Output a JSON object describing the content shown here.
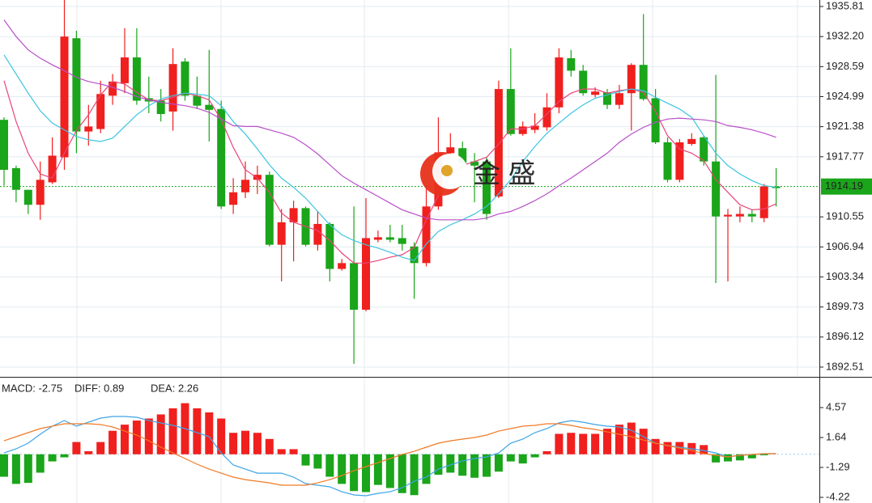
{
  "chart_data": [
    {
      "type": "candlestick",
      "ylim": [
        1891.34,
        1936.59
      ],
      "yticks": [
        1935.81,
        {
          "value": 1932.2,
          "label": "1932.20"
        },
        1928.59,
        1924.99,
        1921.38,
        1917.77,
        1910.55,
        1906.94,
        1903.34,
        1899.73,
        1896.12,
        1892.51
      ],
      "grid": true,
      "up_color": "#f0201e",
      "down_color": "#1aa51a",
      "last_price": 1914.19,
      "last_price_color": "#1aa51a",
      "watermark": "金 盛",
      "open": [
        1922.2,
        1916.4,
        1913.8,
        1912.0,
        1914.7,
        1917.7,
        1932.0,
        1920.8,
        1921.1,
        1925.1,
        1926.6,
        1929.7,
        1924.8,
        1924.5,
        1923.2,
        1929.2,
        1925.1,
        1924.0,
        1923.5,
        1912.0,
        1913.5,
        1915.0,
        1915.6,
        1907.2,
        1909.9,
        1911.6,
        1907.2,
        1909.7,
        1904.3,
        1905.0,
        1899.4,
        1907.8,
        1908.1,
        1908.0,
        1907.0,
        1905.0,
        1911.8,
        1918.2,
        1918.8,
        1917.2,
        1917.2,
        1913.0,
        1925.9,
        1920.5,
        1921.0,
        1921.3,
        1923.7,
        1929.6,
        1928.1,
        1925.2,
        1925.5,
        1924.0,
        1925.4,
        1928.8,
        1924.8,
        1919.5,
        1915.0,
        1919.3,
        1920.1,
        1917.2,
        1910.6,
        1910.6,
        1910.9,
        1910.4,
        1914.2
      ],
      "high": [
        1922.5,
        1916.7,
        1913.8,
        1917.2,
        1920.1,
        1936.6,
        1932.9,
        1924.0,
        1926.9,
        1927.7,
        1933.2,
        1933.2,
        1927.4,
        1925.9,
        1930.8,
        1929.6,
        1927.4,
        1930.6,
        1924.5,
        1915.2,
        1917.2,
        1916.7,
        1916.0,
        1911.5,
        1912.5,
        1911.8,
        1911.2,
        1909.9,
        1905.5,
        1911.8,
        1912.8,
        1908.9,
        1909.6,
        1909.6,
        1907.5,
        1914.3,
        1922.5,
        1920.6,
        1919.6,
        1918.2,
        1917.7,
        1926.9,
        1930.8,
        1922.0,
        1923.0,
        1925.4,
        1930.8,
        1930.6,
        1928.8,
        1926.1,
        1925.9,
        1926.4,
        1929.0,
        1934.9,
        1925.9,
        1920.1,
        1919.9,
        1920.6,
        1920.3,
        1927.6,
        1911.5,
        1911.8,
        1911.4,
        1914.5,
        1916.4
      ],
      "low": [
        1914.3,
        1912.3,
        1910.9,
        1910.2,
        1914.5,
        1916.2,
        1918.2,
        1919.1,
        1920.6,
        1924.0,
        1925.4,
        1924.0,
        1923.0,
        1922.0,
        1920.9,
        1924.5,
        1923.5,
        1919.6,
        1911.5,
        1910.9,
        1912.8,
        1913.3,
        1907.0,
        1902.8,
        1905.2,
        1907.0,
        1906.5,
        1902.8,
        1904.1,
        1892.9,
        1899.2,
        1907.5,
        1907.5,
        1906.5,
        1900.7,
        1904.6,
        1911.4,
        1917.7,
        1916.2,
        1912.3,
        1910.2,
        1912.8,
        1920.3,
        1920.3,
        1920.6,
        1920.9,
        1923.0,
        1927.4,
        1925.1,
        1924.9,
        1923.5,
        1923.5,
        1920.9,
        1924.5,
        1919.3,
        1914.7,
        1914.7,
        1919.1,
        1916.7,
        1902.6,
        1902.8,
        1909.9,
        1909.9,
        1909.9,
        1911.8
      ],
      "close": [
        1916.2,
        1913.8,
        1912.0,
        1915.0,
        1917.9,
        1932.2,
        1920.8,
        1921.4,
        1925.3,
        1926.8,
        1929.7,
        1924.5,
        1924.4,
        1922.9,
        1928.9,
        1925.1,
        1923.9,
        1923.4,
        1911.8,
        1913.5,
        1915.0,
        1915.6,
        1907.2,
        1909.9,
        1911.6,
        1907.2,
        1909.7,
        1904.3,
        1905.0,
        1899.4,
        1908.0,
        1908.1,
        1907.8,
        1907.3,
        1905.0,
        1911.8,
        1918.3,
        1918.9,
        1917.0,
        1916.7,
        1910.9,
        1925.9,
        1920.5,
        1921.4,
        1921.5,
        1923.7,
        1929.7,
        1928.1,
        1925.4,
        1925.6,
        1924.0,
        1925.4,
        1928.8,
        1924.7,
        1919.5,
        1915.0,
        1919.5,
        1919.9,
        1917.2,
        1910.6,
        1910.8,
        1910.9,
        1910.6,
        1914.2,
        1914.0
      ],
      "series": [
        {
          "color": "#e8457a",
          "values": [
            1926.9,
            1922.0,
            1918.2,
            1915.7,
            1915.2,
            1918.2,
            1920.9,
            1922.8,
            1925.2,
            1926.8,
            1926.5,
            1925.5,
            1924.6,
            1924.5,
            1924.9,
            1925.4,
            1925.1,
            1924.6,
            1922.2,
            1918.9,
            1916.2,
            1915.2,
            1913.5,
            1911.0,
            1909.9,
            1909.4,
            1908.9,
            1907.7,
            1906.2,
            1905.0,
            1905.0,
            1905.3,
            1905.7,
            1906.0,
            1906.9,
            1910.2,
            1913.1,
            1915.6,
            1916.7,
            1917.2,
            1917.7,
            1919.3,
            1921.1,
            1921.1,
            1921.5,
            1922.9,
            1924.4,
            1925.4,
            1925.9,
            1925.9,
            1925.4,
            1925.7,
            1925.9,
            1925.5,
            1923.2,
            1920.3,
            1918.7,
            1918.2,
            1917.3,
            1915.0,
            1913.5,
            1912.0,
            1911.4,
            1911.5,
            1912.1
          ]
        },
        {
          "color": "#3cc4e0",
          "values": [
            1930.0,
            1927.7,
            1925.4,
            1923.3,
            1921.8,
            1921.0,
            1920.2,
            1919.8,
            1919.6,
            1920.0,
            1921.4,
            1922.8,
            1923.9,
            1924.7,
            1925.1,
            1925.4,
            1925.3,
            1925.1,
            1923.9,
            1922.0,
            1920.5,
            1918.7,
            1916.8,
            1915.2,
            1914.1,
            1912.8,
            1911.2,
            1909.6,
            1908.4,
            1907.7,
            1907.2,
            1906.8,
            1906.3,
            1905.7,
            1905.3,
            1907.3,
            1908.8,
            1909.6,
            1910.2,
            1910.9,
            1911.8,
            1913.3,
            1915.0,
            1917.2,
            1919.0,
            1920.6,
            1921.8,
            1923.0,
            1924.0,
            1924.8,
            1925.2,
            1925.6,
            1925.9,
            1925.7,
            1924.9,
            1924.2,
            1923.5,
            1922.5,
            1920.3,
            1918.2,
            1916.7,
            1915.7,
            1914.9,
            1914.3,
            1914.1
          ]
        },
        {
          "color": "#b94fc9",
          "values": [
            1934.2,
            1932.2,
            1930.6,
            1929.6,
            1928.8,
            1928.1,
            1927.3,
            1926.8,
            1926.5,
            1926.1,
            1925.6,
            1925.0,
            1924.6,
            1924.3,
            1924.1,
            1923.9,
            1923.6,
            1923.1,
            1922.3,
            1921.5,
            1921.4,
            1921.4,
            1921.0,
            1920.6,
            1920.1,
            1919.2,
            1918.1,
            1916.8,
            1915.5,
            1914.6,
            1913.8,
            1913.0,
            1912.2,
            1911.4,
            1910.9,
            1910.4,
            1910.2,
            1910.2,
            1910.2,
            1910.2,
            1910.4,
            1910.9,
            1911.2,
            1911.8,
            1912.5,
            1913.3,
            1914.3,
            1915.2,
            1916.2,
            1917.2,
            1918.2,
            1919.5,
            1920.5,
            1921.3,
            1921.9,
            1922.3,
            1922.4,
            1922.3,
            1922.2,
            1922.0,
            1921.5,
            1921.3,
            1921.0,
            1920.6,
            1920.1
          ]
        }
      ]
    },
    {
      "type": "macd",
      "ylim": [
        -4.77,
        7.5
      ],
      "yticks": [
        4.57,
        1.64,
        -1.29,
        -4.22
      ],
      "up_color": "#f0201e",
      "down_color": "#1aa51a",
      "histogram": {
        "label": "MACD: -2.75",
        "color": "#1a9f1a",
        "values": [
          -2.2,
          -2.9,
          -2.8,
          -1.8,
          -0.7,
          -0.3,
          1.2,
          0.3,
          1.2,
          2.3,
          2.9,
          3.3,
          3.5,
          3.9,
          4.5,
          5.0,
          4.5,
          4.1,
          3.5,
          2.1,
          2.3,
          2.1,
          1.5,
          0.5,
          0.5,
          -1.1,
          -1.4,
          -2.2,
          -2.9,
          -3.6,
          -3.7,
          -3.0,
          -3.3,
          -3.8,
          -4.0,
          -2.9,
          -2.0,
          -1.8,
          -2.1,
          -2.3,
          -2.2,
          -1.7,
          -0.7,
          -0.9,
          -0.3,
          0.3,
          2.0,
          2.1,
          2.0,
          2.0,
          2.5,
          2.9,
          3.1,
          2.5,
          1.5,
          1.2,
          1.2,
          1.1,
          0.9,
          -0.8,
          -0.7,
          -0.6,
          -0.4,
          -0.1,
          0
        ]
      },
      "series": [
        {
          "label": "DIFF: 0.89",
          "color": "#3ea4e6",
          "values": [
            0.13,
            0.53,
            1.09,
            1.96,
            2.75,
            3.3,
            2.75,
            3.14,
            3.54,
            3.7,
            3.7,
            3.62,
            3.3,
            3.07,
            2.83,
            2.51,
            2.12,
            1.72,
            0.13,
            -1.05,
            -1.45,
            -1.85,
            -1.85,
            -1.85,
            -2.24,
            -2.87,
            -3.03,
            -3.19,
            -3.67,
            -3.98,
            -4.06,
            -3.83,
            -3.67,
            -3.27,
            -2.64,
            -2.24,
            -1.45,
            -1.05,
            -0.66,
            -0.42,
            -0.26,
            0.13,
            1.09,
            1.48,
            2.12,
            2.51,
            3.07,
            3.3,
            3.14,
            2.91,
            2.75,
            2.67,
            2.35,
            1.72,
            1.09,
            0.85,
            0.69,
            0.53,
            0.37,
            0.13,
            -0.26,
            -0.1,
            -0.02,
            0.06,
            0.06
          ]
        },
        {
          "label": "DEA: 2.26",
          "color": "#f07a26",
          "values": [
            1.32,
            1.72,
            2.12,
            2.51,
            2.75,
            2.99,
            2.99,
            2.99,
            2.91,
            2.67,
            2.27,
            1.88,
            1.32,
            0.69,
            0.13,
            -0.42,
            -0.97,
            -1.45,
            -1.85,
            -2.24,
            -2.48,
            -2.64,
            -2.8,
            -3.03,
            -3.03,
            -3.03,
            -2.8,
            -2.48,
            -2.08,
            -1.61,
            -1.21,
            -0.82,
            -0.42,
            -0.02,
            0.29,
            0.69,
            1.09,
            1.32,
            1.48,
            1.64,
            1.88,
            2.27,
            2.51,
            2.75,
            2.83,
            2.99,
            2.99,
            2.83,
            2.59,
            2.43,
            2.19,
            1.96,
            1.72,
            1.4,
            1.09,
            0.85,
            0.61,
            0.37,
            0.06,
            -0.1,
            -0.26,
            -0.1,
            -0.02,
            0.06,
            0.06
          ]
        }
      ]
    }
  ]
}
